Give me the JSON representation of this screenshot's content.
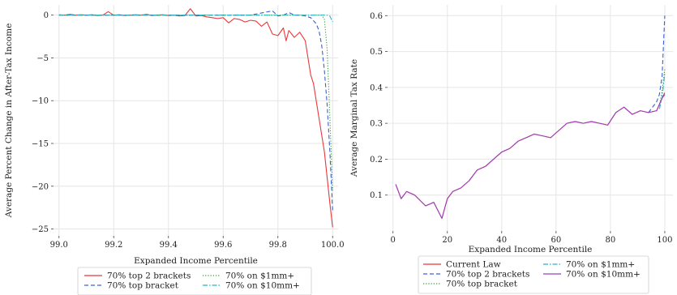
{
  "chart_data": [
    {
      "type": "line",
      "xlabel": "Expanded Income Percentile",
      "ylabel": "Average Percent Change in After-Tax Income",
      "xlim": [
        98.98,
        100.02
      ],
      "ylim": [
        -25.8,
        1.2
      ],
      "xticks": [
        "99.0",
        "99.2",
        "99.4",
        "99.6",
        "99.8",
        "100.0"
      ],
      "yticks": [
        "0",
        "−5",
        "−10",
        "−15",
        "−20",
        "−25"
      ],
      "grid": true,
      "legend_placement": "below",
      "series": [
        {
          "name": "70% top 2 brackets",
          "color": "#e8383b",
          "dash": "solid",
          "points": [
            [
              99.0,
              0.05
            ],
            [
              99.02,
              0.0
            ],
            [
              99.04,
              0.1
            ],
            [
              99.06,
              0.0
            ],
            [
              99.08,
              0.05
            ],
            [
              99.1,
              0.0
            ],
            [
              99.12,
              0.05
            ],
            [
              99.14,
              -0.05
            ],
            [
              99.16,
              0.0
            ],
            [
              99.18,
              0.4
            ],
            [
              99.2,
              0.0
            ],
            [
              99.22,
              0.05
            ],
            [
              99.24,
              -0.05
            ],
            [
              99.26,
              0.0
            ],
            [
              99.28,
              0.05
            ],
            [
              99.3,
              0.0
            ],
            [
              99.32,
              0.1
            ],
            [
              99.34,
              -0.05
            ],
            [
              99.36,
              0.0
            ],
            [
              99.38,
              0.05
            ],
            [
              99.4,
              -0.05
            ],
            [
              99.42,
              0.0
            ],
            [
              99.44,
              -0.1
            ],
            [
              99.46,
              -0.05
            ],
            [
              99.48,
              0.75
            ],
            [
              99.5,
              -0.1
            ],
            [
              99.52,
              -0.05
            ],
            [
              99.54,
              -0.2
            ],
            [
              99.56,
              -0.3
            ],
            [
              99.58,
              -0.4
            ],
            [
              99.6,
              -0.3
            ],
            [
              99.62,
              -0.9
            ],
            [
              99.64,
              -0.4
            ],
            [
              99.66,
              -0.5
            ],
            [
              99.68,
              -0.8
            ],
            [
              99.7,
              -0.6
            ],
            [
              99.72,
              -0.7
            ],
            [
              99.74,
              -1.3
            ],
            [
              99.76,
              -0.8
            ],
            [
              99.78,
              -2.2
            ],
            [
              99.8,
              -2.4
            ],
            [
              99.82,
              -1.5
            ],
            [
              99.83,
              -3.0
            ],
            [
              99.84,
              -1.8
            ],
            [
              99.86,
              -2.6
            ],
            [
              99.88,
              -2.0
            ],
            [
              99.9,
              -3.0
            ],
            [
              99.91,
              -5.0
            ],
            [
              99.92,
              -7.0
            ],
            [
              99.93,
              -8.0
            ],
            [
              99.94,
              -10.0
            ],
            [
              99.95,
              -12.0
            ],
            [
              99.96,
              -14.0
            ],
            [
              99.97,
              -16.0
            ],
            [
              99.98,
              -19.0
            ],
            [
              99.99,
              -22.0
            ],
            [
              100.0,
              -24.8
            ]
          ]
        },
        {
          "name": "70% top bracket",
          "color": "#3a5fd6",
          "dash": "dashed",
          "points": [
            [
              99.0,
              0.0
            ],
            [
              99.1,
              0.0
            ],
            [
              99.2,
              0.0
            ],
            [
              99.3,
              0.0
            ],
            [
              99.4,
              0.0
            ],
            [
              99.5,
              0.0
            ],
            [
              99.6,
              0.0
            ],
            [
              99.7,
              0.0
            ],
            [
              99.78,
              0.5
            ],
            [
              99.8,
              -0.1
            ],
            [
              99.82,
              0.0
            ],
            [
              99.84,
              0.3
            ],
            [
              99.86,
              0.0
            ],
            [
              99.88,
              0.0
            ],
            [
              99.9,
              -0.1
            ],
            [
              99.92,
              -0.3
            ],
            [
              99.94,
              -1.0
            ],
            [
              99.95,
              -1.8
            ],
            [
              99.96,
              -3.5
            ],
            [
              99.97,
              -6.5
            ],
            [
              99.98,
              -10.5
            ],
            [
              99.99,
              -16.0
            ],
            [
              100.0,
              -22.8
            ]
          ]
        },
        {
          "name": "70% on $1mm+",
          "color": "#3a9a3a",
          "dash": "dotted",
          "points": [
            [
              99.0,
              0.0
            ],
            [
              99.2,
              0.0
            ],
            [
              99.4,
              0.0
            ],
            [
              99.6,
              0.0
            ],
            [
              99.8,
              0.0
            ],
            [
              99.9,
              0.0
            ],
            [
              99.96,
              0.0
            ],
            [
              99.97,
              -0.5
            ],
            [
              99.98,
              -4.0
            ],
            [
              99.99,
              -12.0
            ],
            [
              100.0,
              -20.5
            ]
          ]
        },
        {
          "name": "70% on $10mm+",
          "color": "#2bb5c4",
          "dash": "dashdot",
          "points": [
            [
              99.0,
              0.0
            ],
            [
              99.2,
              0.0
            ],
            [
              99.4,
              0.0
            ],
            [
              99.6,
              0.0
            ],
            [
              99.8,
              0.0
            ],
            [
              99.9,
              0.0
            ],
            [
              99.98,
              0.0
            ],
            [
              99.99,
              -0.1
            ],
            [
              100.0,
              -0.8
            ]
          ]
        }
      ]
    },
    {
      "type": "line",
      "xlabel": "Expanded Income Percentile",
      "ylabel": "Average Marginal Tax Rate",
      "xlim": [
        -2,
        103
      ],
      "ylim": [
        0.0,
        0.63
      ],
      "xticks": [
        "0",
        "20",
        "40",
        "60",
        "80",
        "100"
      ],
      "yticks": [
        "0.1",
        "0.2",
        "0.3",
        "0.4",
        "0.5",
        "0.6"
      ],
      "grid": true,
      "legend_placement": "below",
      "series": [
        {
          "name": "Current Law",
          "color": "#e8383b",
          "dash": "solid",
          "points": [
            [
              1,
              0.13
            ],
            [
              3,
              0.09
            ],
            [
              5,
              0.11
            ],
            [
              8,
              0.1
            ],
            [
              12,
              0.07
            ],
            [
              15,
              0.08
            ],
            [
              18,
              0.035
            ],
            [
              20,
              0.09
            ],
            [
              22,
              0.11
            ],
            [
              25,
              0.12
            ],
            [
              28,
              0.14
            ],
            [
              31,
              0.17
            ],
            [
              34,
              0.18
            ],
            [
              37,
              0.2
            ],
            [
              40,
              0.22
            ],
            [
              43,
              0.23
            ],
            [
              46,
              0.25
            ],
            [
              49,
              0.26
            ],
            [
              52,
              0.27
            ],
            [
              55,
              0.265
            ],
            [
              58,
              0.26
            ],
            [
              61,
              0.28
            ],
            [
              64,
              0.3
            ],
            [
              67,
              0.305
            ],
            [
              70,
              0.3
            ],
            [
              73,
              0.305
            ],
            [
              76,
              0.3
            ],
            [
              79,
              0.295
            ],
            [
              82,
              0.33
            ],
            [
              85,
              0.345
            ],
            [
              88,
              0.325
            ],
            [
              91,
              0.335
            ],
            [
              94,
              0.33
            ],
            [
              97,
              0.335
            ],
            [
              99,
              0.37
            ],
            [
              100,
              0.38
            ]
          ]
        },
        {
          "name": "70% top 2 brackets",
          "color": "#3a5fd6",
          "dash": "dashed",
          "points": [
            [
              94,
              0.33
            ],
            [
              95,
              0.34
            ],
            [
              96,
              0.35
            ],
            [
              97,
              0.36
            ],
            [
              98,
              0.38
            ],
            [
              99,
              0.43
            ],
            [
              100,
              0.6
            ]
          ]
        },
        {
          "name": "70% top bracket",
          "color": "#3a9a3a",
          "dash": "dotted",
          "points": [
            [
              97,
              0.335
            ],
            [
              98,
              0.35
            ],
            [
              99,
              0.39
            ],
            [
              100,
              0.45
            ]
          ]
        },
        {
          "name": "70% on $1mm+",
          "color": "#2bb5c4",
          "dash": "dashdot",
          "points": [
            [
              98,
              0.34
            ],
            [
              99,
              0.37
            ],
            [
              100,
              0.44
            ]
          ]
        },
        {
          "name": "70% on $10mm+",
          "color": "#9b3fbf",
          "dash": "solid",
          "points": [
            [
              1,
              0.13
            ],
            [
              3,
              0.09
            ],
            [
              5,
              0.11
            ],
            [
              8,
              0.1
            ],
            [
              12,
              0.07
            ],
            [
              15,
              0.08
            ],
            [
              18,
              0.035
            ],
            [
              20,
              0.09
            ],
            [
              22,
              0.11
            ],
            [
              25,
              0.12
            ],
            [
              28,
              0.14
            ],
            [
              31,
              0.17
            ],
            [
              34,
              0.18
            ],
            [
              37,
              0.2
            ],
            [
              40,
              0.22
            ],
            [
              43,
              0.23
            ],
            [
              46,
              0.25
            ],
            [
              49,
              0.26
            ],
            [
              52,
              0.27
            ],
            [
              55,
              0.265
            ],
            [
              58,
              0.26
            ],
            [
              61,
              0.28
            ],
            [
              64,
              0.3
            ],
            [
              67,
              0.305
            ],
            [
              70,
              0.3
            ],
            [
              73,
              0.305
            ],
            [
              76,
              0.3
            ],
            [
              79,
              0.295
            ],
            [
              82,
              0.33
            ],
            [
              85,
              0.345
            ],
            [
              88,
              0.325
            ],
            [
              91,
              0.335
            ],
            [
              94,
              0.33
            ],
            [
              97,
              0.335
            ],
            [
              99,
              0.37
            ],
            [
              100,
              0.385
            ]
          ]
        }
      ]
    }
  ]
}
